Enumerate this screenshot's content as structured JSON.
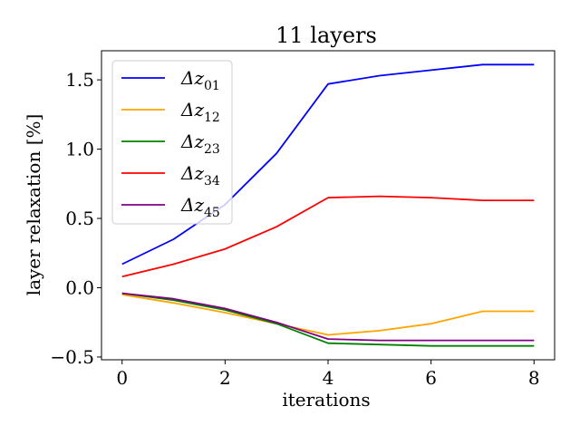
{
  "chart_data": {
    "type": "line",
    "title": "11 layers",
    "xlabel": "iterations",
    "ylabel": "layer relaxation [%]",
    "xlim": [
      -0.4,
      8.4
    ],
    "ylim": [
      -0.52,
      1.71
    ],
    "xticks": [
      0,
      2,
      4,
      6,
      8
    ],
    "xtick_labels": [
      "0",
      "2",
      "4",
      "6",
      "8"
    ],
    "yticks": [
      -0.5,
      0.0,
      0.5,
      1.0,
      1.5
    ],
    "ytick_labels": [
      "−0.5",
      "0.0",
      "0.5",
      "1.0",
      "1.5"
    ],
    "grid": false,
    "legend_position": "upper-left",
    "x": [
      0,
      1,
      2,
      3,
      4,
      5,
      6,
      7,
      8
    ],
    "series": [
      {
        "base": "Δz",
        "sub": "01",
        "color": "#0000ff",
        "values": [
          0.17,
          0.35,
          0.6,
          0.97,
          1.47,
          1.53,
          1.57,
          1.61,
          1.61
        ]
      },
      {
        "base": "Δz",
        "sub": "12",
        "color": "#ffa500",
        "values": [
          -0.05,
          -0.11,
          -0.18,
          -0.26,
          -0.34,
          -0.31,
          -0.26,
          -0.17,
          -0.17
        ]
      },
      {
        "base": "Δz",
        "sub": "23",
        "color": "#008000",
        "values": [
          -0.04,
          -0.09,
          -0.16,
          -0.26,
          -0.4,
          -0.41,
          -0.42,
          -0.42,
          -0.42
        ]
      },
      {
        "base": "Δz",
        "sub": "34",
        "color": "#ff0000",
        "values": [
          0.08,
          0.17,
          0.28,
          0.44,
          0.65,
          0.66,
          0.65,
          0.63,
          0.63
        ]
      },
      {
        "base": "Δz",
        "sub": "45",
        "color": "#800080",
        "values": [
          -0.04,
          -0.08,
          -0.15,
          -0.25,
          -0.37,
          -0.38,
          -0.38,
          -0.38,
          -0.38
        ]
      }
    ]
  }
}
